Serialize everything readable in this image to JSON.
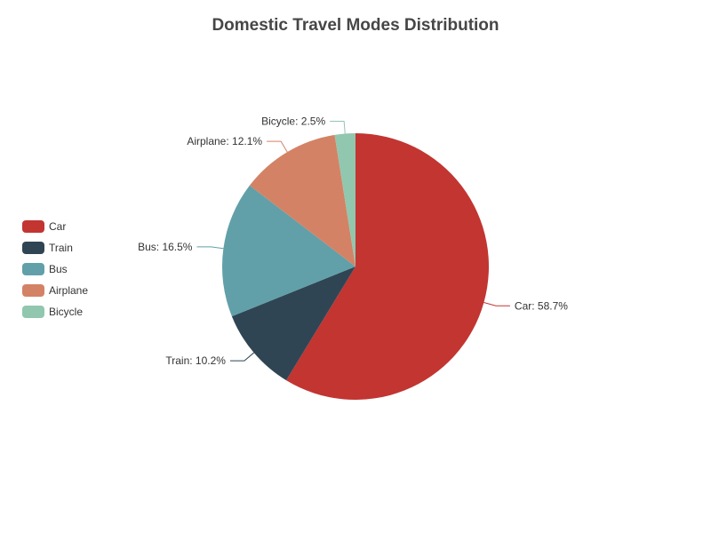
{
  "chart_data": {
    "type": "pie",
    "title": "Domestic Travel Modes Distribution",
    "legend_position": "left",
    "slices": [
      {
        "name": "Car",
        "value": 58.7,
        "label": "Car: 58.7%",
        "color": "#c23531"
      },
      {
        "name": "Train",
        "value": 10.2,
        "label": "Train: 10.2%",
        "color": "#2f4554"
      },
      {
        "name": "Bus",
        "value": 16.5,
        "label": "Bus: 16.5%",
        "color": "#61a0a8"
      },
      {
        "name": "Airplane",
        "value": 12.1,
        "label": "Airplane: 12.1%",
        "color": "#d48265"
      },
      {
        "name": "Bicycle",
        "value": 2.5,
        "label": "Bicycle: 2.5%",
        "color": "#91c7ae"
      }
    ]
  }
}
